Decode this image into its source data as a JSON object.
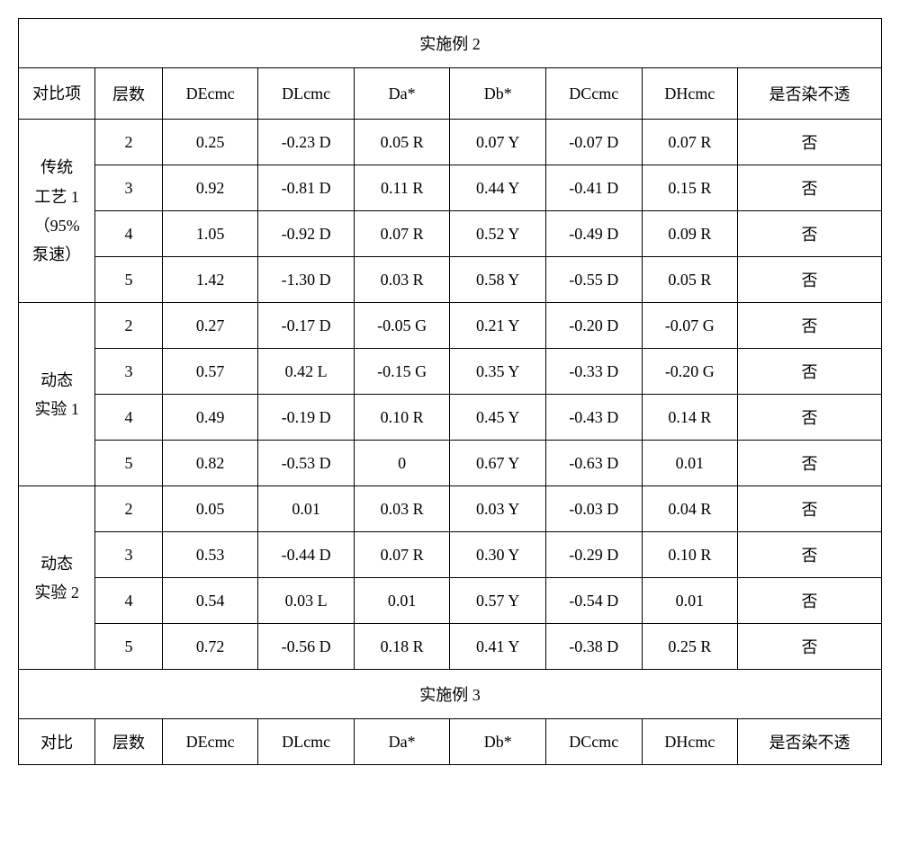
{
  "colors": {
    "background": "#ffffff",
    "border": "#000000",
    "text": "#000000"
  },
  "typography": {
    "font_family": "SimSun",
    "cell_fontsize": 18
  },
  "section1": {
    "title": "实施例 2",
    "headers": {
      "compare": "对比项",
      "layer": "层数",
      "decmc": "DEcmc",
      "dlcmc": "DLcmc",
      "da": "Da*",
      "db": "Db*",
      "dccmc": "DCcmc",
      "dhcmc": "DHcmc",
      "permeate": "是否染不透"
    },
    "groups": [
      {
        "label_line1": "传统",
        "label_line2": "工艺 1",
        "label_line3": "（95%",
        "label_line4": "泵速）",
        "rows": [
          {
            "layer": "2",
            "decmc": "0.25",
            "dlcmc": "-0.23 D",
            "da": "0.05 R",
            "db": "0.07 Y",
            "dccmc": "-0.07 D",
            "dhcmc": "0.07 R",
            "permeate": "否"
          },
          {
            "layer": "3",
            "decmc": "0.92",
            "dlcmc": "-0.81 D",
            "da": "0.11 R",
            "db": "0.44 Y",
            "dccmc": "-0.41 D",
            "dhcmc": "0.15 R",
            "permeate": "否"
          },
          {
            "layer": "4",
            "decmc": "1.05",
            "dlcmc": "-0.92 D",
            "da": "0.07 R",
            "db": "0.52 Y",
            "dccmc": "-0.49 D",
            "dhcmc": "0.09 R",
            "permeate": "否"
          },
          {
            "layer": "5",
            "decmc": "1.42",
            "dlcmc": "-1.30 D",
            "da": "0.03 R",
            "db": "0.58 Y",
            "dccmc": "-0.55 D",
            "dhcmc": "0.05 R",
            "permeate": "否"
          }
        ]
      },
      {
        "label_line1": "动态",
        "label_line2": "实验 1",
        "rows": [
          {
            "layer": "2",
            "decmc": "0.27",
            "dlcmc": "-0.17 D",
            "da": "-0.05 G",
            "db": "0.21 Y",
            "dccmc": "-0.20 D",
            "dhcmc": "-0.07 G",
            "permeate": "否"
          },
          {
            "layer": "3",
            "decmc": "0.57",
            "dlcmc": "0.42 L",
            "da": "-0.15 G",
            "db": "0.35 Y",
            "dccmc": "-0.33 D",
            "dhcmc": "-0.20 G",
            "permeate": "否"
          },
          {
            "layer": "4",
            "decmc": "0.49",
            "dlcmc": "-0.19 D",
            "da": "0.10 R",
            "db": "0.45 Y",
            "dccmc": "-0.43 D",
            "dhcmc": "0.14 R",
            "permeate": "否"
          },
          {
            "layer": "5",
            "decmc": "0.82",
            "dlcmc": "-0.53 D",
            "da": "0",
            "db": "0.67 Y",
            "dccmc": "-0.63 D",
            "dhcmc": "0.01",
            "permeate": "否"
          }
        ]
      },
      {
        "label_line1": "动态",
        "label_line2": "实验 2",
        "rows": [
          {
            "layer": "2",
            "decmc": "0.05",
            "dlcmc": "0.01",
            "da": "0.03 R",
            "db": "0.03 Y",
            "dccmc": "-0.03 D",
            "dhcmc": "0.04 R",
            "permeate": "否"
          },
          {
            "layer": "3",
            "decmc": "0.53",
            "dlcmc": "-0.44 D",
            "da": "0.07 R",
            "db": "0.30 Y",
            "dccmc": "-0.29 D",
            "dhcmc": "0.10 R",
            "permeate": "否"
          },
          {
            "layer": "4",
            "decmc": "0.54",
            "dlcmc": "0.03 L",
            "da": "0.01",
            "db": "0.57 Y",
            "dccmc": "-0.54 D",
            "dhcmc": "0.01",
            "permeate": "否"
          },
          {
            "layer": "5",
            "decmc": "0.72",
            "dlcmc": "-0.56 D",
            "da": "0.18 R",
            "db": "0.41 Y",
            "dccmc": "-0.38 D",
            "dhcmc": "0.25 R",
            "permeate": "否"
          }
        ]
      }
    ]
  },
  "section2": {
    "title": "实施例 3",
    "headers": {
      "compare": "对比",
      "layer": "层数",
      "decmc": "DEcmc",
      "dlcmc": "DLcmc",
      "da": "Da*",
      "db": "Db*",
      "dccmc": "DCcmc",
      "dhcmc": "DHcmc",
      "permeate": "是否染不透"
    }
  }
}
